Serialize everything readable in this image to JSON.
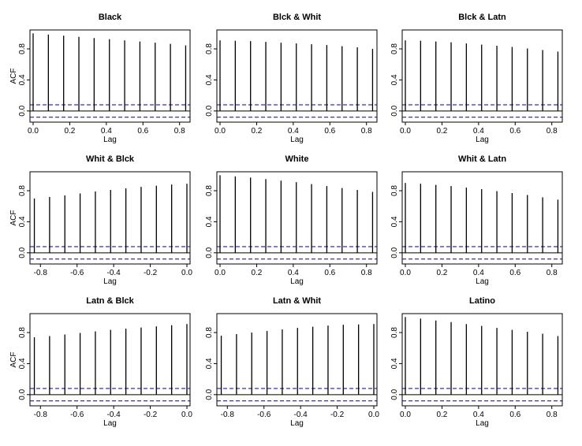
{
  "chart_data": [
    {
      "type": "bar",
      "title": "Black",
      "xlabel": "Lag",
      "ylabel": "ACF",
      "ylim": [
        -0.1,
        1.0
      ],
      "xlim": [
        0.0,
        0.84
      ],
      "x_ticks": [
        0.0,
        0.2,
        0.4,
        0.6,
        0.8
      ],
      "y_ticks": [
        0.0,
        0.4,
        0.8
      ],
      "confidence_band": [
        0.08,
        -0.08
      ],
      "lags": [
        0.0,
        0.0833,
        0.1667,
        0.25,
        0.3333,
        0.4167,
        0.5,
        0.5833,
        0.6667,
        0.75,
        0.8333
      ],
      "values": [
        1.0,
        0.985,
        0.97,
        0.955,
        0.94,
        0.925,
        0.91,
        0.895,
        0.88,
        0.865,
        0.845
      ]
    },
    {
      "type": "bar",
      "title": "Blck & Whit",
      "xlabel": "Lag",
      "ylabel": "",
      "ylim": [
        -0.1,
        1.0
      ],
      "xlim": [
        0.0,
        0.84
      ],
      "x_ticks": [
        0.0,
        0.2,
        0.4,
        0.6,
        0.8
      ],
      "y_ticks": [
        0.0,
        0.4,
        0.8
      ],
      "confidence_band": [
        0.08,
        -0.08
      ],
      "lags": [
        0.0,
        0.0833,
        0.1667,
        0.25,
        0.3333,
        0.4167,
        0.5,
        0.5833,
        0.6667,
        0.75,
        0.8333
      ],
      "values": [
        0.91,
        0.905,
        0.9,
        0.89,
        0.88,
        0.87,
        0.86,
        0.85,
        0.835,
        0.82,
        0.8
      ]
    },
    {
      "type": "bar",
      "title": "Blck & Latn",
      "xlabel": "Lag",
      "ylabel": "",
      "ylim": [
        -0.1,
        1.0
      ],
      "xlim": [
        0.0,
        0.84
      ],
      "x_ticks": [
        0.0,
        0.2,
        0.4,
        0.6,
        0.8
      ],
      "y_ticks": [
        0.0,
        0.4,
        0.8
      ],
      "confidence_band": [
        0.08,
        -0.08
      ],
      "lags": [
        0.0,
        0.0833,
        0.1667,
        0.25,
        0.3333,
        0.4167,
        0.5,
        0.5833,
        0.6667,
        0.75,
        0.8333
      ],
      "values": [
        0.91,
        0.905,
        0.895,
        0.885,
        0.87,
        0.855,
        0.84,
        0.825,
        0.805,
        0.785,
        0.765
      ]
    },
    {
      "type": "bar",
      "title": "Whit & Blck",
      "xlabel": "Lag",
      "ylabel": "ACF",
      "ylim": [
        -0.1,
        1.0
      ],
      "xlim": [
        -0.84,
        0.0
      ],
      "x_ticks": [
        -0.8,
        -0.6,
        -0.4,
        -0.2,
        0.0
      ],
      "y_ticks": [
        0.0,
        0.4,
        0.8
      ],
      "confidence_band": [
        0.08,
        -0.08
      ],
      "lags": [
        -0.8333,
        -0.75,
        -0.6667,
        -0.5833,
        -0.5,
        -0.4167,
        -0.3333,
        -0.25,
        -0.1667,
        -0.0833,
        0.0
      ],
      "values": [
        0.7,
        0.72,
        0.74,
        0.765,
        0.79,
        0.81,
        0.83,
        0.85,
        0.865,
        0.88,
        0.89
      ]
    },
    {
      "type": "bar",
      "title": "White",
      "xlabel": "Lag",
      "ylabel": "",
      "ylim": [
        -0.1,
        1.0
      ],
      "xlim": [
        0.0,
        0.84
      ],
      "x_ticks": [
        0.0,
        0.2,
        0.4,
        0.6,
        0.8
      ],
      "y_ticks": [
        0.0,
        0.4,
        0.8
      ],
      "confidence_band": [
        0.08,
        -0.08
      ],
      "lags": [
        0.0,
        0.0833,
        0.1667,
        0.25,
        0.3333,
        0.4167,
        0.5,
        0.5833,
        0.6667,
        0.75,
        0.8333
      ],
      "values": [
        1.0,
        0.985,
        0.97,
        0.95,
        0.93,
        0.91,
        0.885,
        0.86,
        0.835,
        0.81,
        0.785
      ]
    },
    {
      "type": "bar",
      "title": "Whit & Latn",
      "xlabel": "Lag",
      "ylabel": "",
      "ylim": [
        -0.1,
        1.0
      ],
      "xlim": [
        0.0,
        0.84
      ],
      "x_ticks": [
        0.0,
        0.2,
        0.4,
        0.6,
        0.8
      ],
      "y_ticks": [
        0.0,
        0.4,
        0.8
      ],
      "confidence_band": [
        0.08,
        -0.08
      ],
      "lags": [
        0.0,
        0.0833,
        0.1667,
        0.25,
        0.3333,
        0.4167,
        0.5,
        0.5833,
        0.6667,
        0.75,
        0.8333
      ],
      "values": [
        0.9,
        0.89,
        0.875,
        0.86,
        0.84,
        0.82,
        0.795,
        0.77,
        0.745,
        0.715,
        0.685
      ]
    },
    {
      "type": "bar",
      "title": "Latn & Blck",
      "xlabel": "Lag",
      "ylabel": "ACF",
      "ylim": [
        -0.1,
        1.0
      ],
      "xlim": [
        -0.84,
        0.0
      ],
      "x_ticks": [
        -0.8,
        -0.6,
        -0.4,
        -0.2,
        0.0
      ],
      "y_ticks": [
        0.0,
        0.4,
        0.8
      ],
      "confidence_band": [
        0.08,
        -0.08
      ],
      "lags": [
        -0.8333,
        -0.75,
        -0.6667,
        -0.5833,
        -0.5,
        -0.4167,
        -0.3333,
        -0.25,
        -0.1667,
        -0.0833,
        0.0
      ],
      "values": [
        0.74,
        0.755,
        0.775,
        0.795,
        0.815,
        0.835,
        0.85,
        0.865,
        0.88,
        0.895,
        0.91
      ]
    },
    {
      "type": "bar",
      "title": "Latn & Whit",
      "xlabel": "Lag",
      "ylabel": "",
      "ylim": [
        -0.1,
        1.0
      ],
      "xlim": [
        -0.84,
        0.0
      ],
      "x_ticks": [
        -0.8,
        -0.6,
        -0.4,
        -0.2,
        0.0
      ],
      "y_ticks": [
        0.0,
        0.4,
        0.8
      ],
      "confidence_band": [
        0.08,
        -0.08
      ],
      "lags": [
        -0.8333,
        -0.75,
        -0.6667,
        -0.5833,
        -0.5,
        -0.4167,
        -0.3333,
        -0.25,
        -0.1667,
        -0.0833,
        0.0
      ],
      "values": [
        0.76,
        0.78,
        0.8,
        0.82,
        0.84,
        0.86,
        0.875,
        0.89,
        0.9,
        0.905,
        0.91
      ]
    },
    {
      "type": "bar",
      "title": "Latino",
      "xlabel": "Lag",
      "ylabel": "",
      "ylim": [
        -0.1,
        1.0
      ],
      "xlim": [
        0.0,
        0.84
      ],
      "x_ticks": [
        0.0,
        0.2,
        0.4,
        0.6,
        0.8
      ],
      "y_ticks": [
        0.0,
        0.4,
        0.8
      ],
      "confidence_band": [
        0.08,
        -0.08
      ],
      "lags": [
        0.0,
        0.0833,
        0.1667,
        0.25,
        0.3333,
        0.4167,
        0.5,
        0.5833,
        0.6667,
        0.75,
        0.8333
      ],
      "values": [
        1.0,
        0.98,
        0.955,
        0.935,
        0.91,
        0.885,
        0.86,
        0.835,
        0.81,
        0.785,
        0.755
      ]
    }
  ],
  "colors": {
    "spike": "#000000",
    "confidence_band": "#00008b",
    "zero_line": "#000000",
    "frame": "#000000"
  }
}
